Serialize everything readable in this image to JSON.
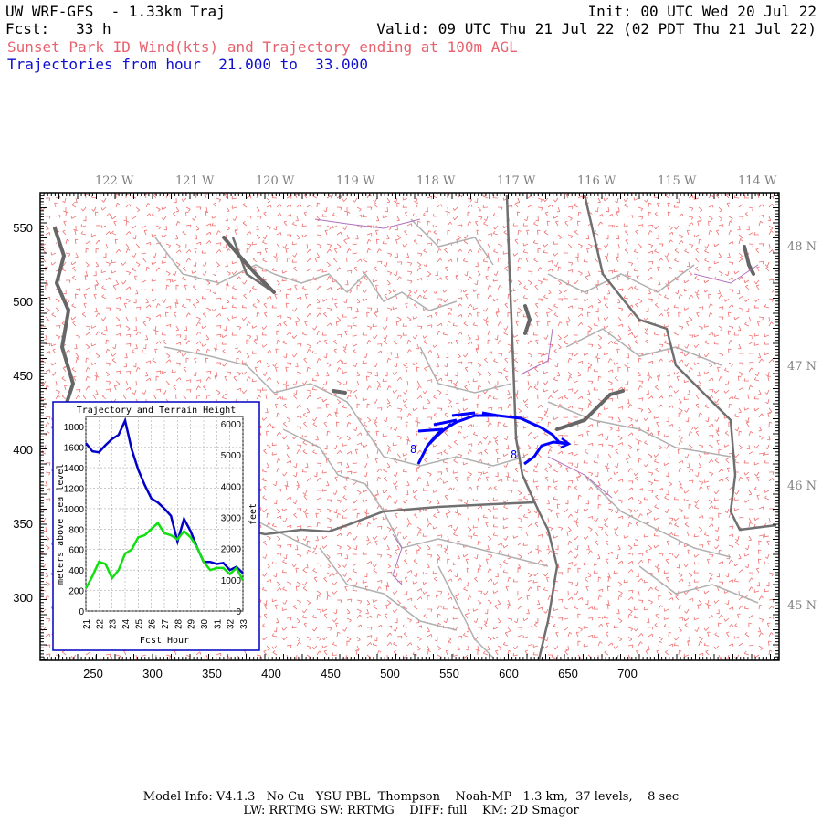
{
  "header": {
    "model": "UW WRF-GFS  - 1.33km Traj",
    "init": "Init: 00 UTC Wed 20 Jul 22",
    "fcst": "Fcst:   33 h",
    "valid": "Valid: 09 UTC Thu 21 Jul 22 (02 PDT Thu 21 Jul 22)",
    "subtitle_red": "Sunset Park ID Wind(kts) and Trajectory ending at 100m AGL",
    "subtitle_blue": "Trajectories from hour  21.000 to  33.000"
  },
  "map": {
    "lon_labels": [
      "122 W",
      "121 W",
      "120 W",
      "119 W",
      "118 W",
      "117 W",
      "116 W",
      "115 W",
      "114 W"
    ],
    "lat_labels": [
      "48 N",
      "47 N",
      "46 N",
      "45 N"
    ],
    "x_ticks": [
      "250",
      "300",
      "350",
      "400",
      "450",
      "500",
      "550",
      "600",
      "650",
      "700"
    ],
    "y_ticks": [
      "550",
      "500",
      "450",
      "400",
      "350",
      "300"
    ],
    "traj_marker": "8",
    "colors": {
      "wind": "#f07070",
      "traj": "#0000ff",
      "state": "#777777",
      "county": "#b0b0b0",
      "water": "#666666",
      "river": "#b070c0"
    }
  },
  "inset": {
    "title": "Trajectory and Terrain Height",
    "xlabel": "Fcst Hour",
    "ylabel_left": "meters above sea level",
    "ylabel_right": "feet",
    "y_left_ticks": [
      "1800",
      "1600",
      "1400",
      "1200",
      "1000",
      "800",
      "600",
      "400",
      "200",
      "0"
    ],
    "y_right_ticks": [
      "6000",
      "5000",
      "4000",
      "3000",
      "2000",
      "1000",
      "0"
    ],
    "x_ticks": [
      "21",
      "22",
      "23",
      "24",
      "25",
      "26",
      "27",
      "28",
      "29",
      "30",
      "31",
      "32",
      "33"
    ]
  },
  "footer": {
    "line1": "Model Info: V4.1.3   No Cu   YSU PBL  Thompson    Noah-MP   1.3 km,  37 levels,    8 sec",
    "line2": "LW: RRTMG SW: RRTMG    DIFF: full    KM: 2D Smagor"
  },
  "chart_data": {
    "type": "line",
    "title": "Trajectory and Terrain Height",
    "xlabel": "Fcst Hour",
    "ylabel": "meters above sea level",
    "x": [
      21,
      21.5,
      22,
      22.5,
      23,
      23.5,
      24,
      24.5,
      25,
      25.5,
      26,
      26.5,
      27,
      27.5,
      28,
      28.5,
      29,
      29.5,
      30,
      30.5,
      31,
      31.5,
      32,
      32.5,
      33
    ],
    "series": [
      {
        "values": [
          1640,
          1560,
          1550,
          1620,
          1680,
          1720,
          1860,
          1580,
          1380,
          1230,
          1100,
          1060,
          1000,
          930,
          680,
          900,
          780,
          620,
          480,
          480,
          460,
          470,
          400,
          430,
          370
        ]
      },
      {
        "values": [
          220,
          340,
          480,
          460,
          320,
          400,
          560,
          600,
          720,
          740,
          800,
          860,
          760,
          740,
          700,
          780,
          720,
          620,
          480,
          400,
          420,
          420,
          360,
          420,
          300
        ]
      }
    ],
    "xlim": [
      21,
      33
    ],
    "ylim": [
      0,
      1900
    ]
  }
}
